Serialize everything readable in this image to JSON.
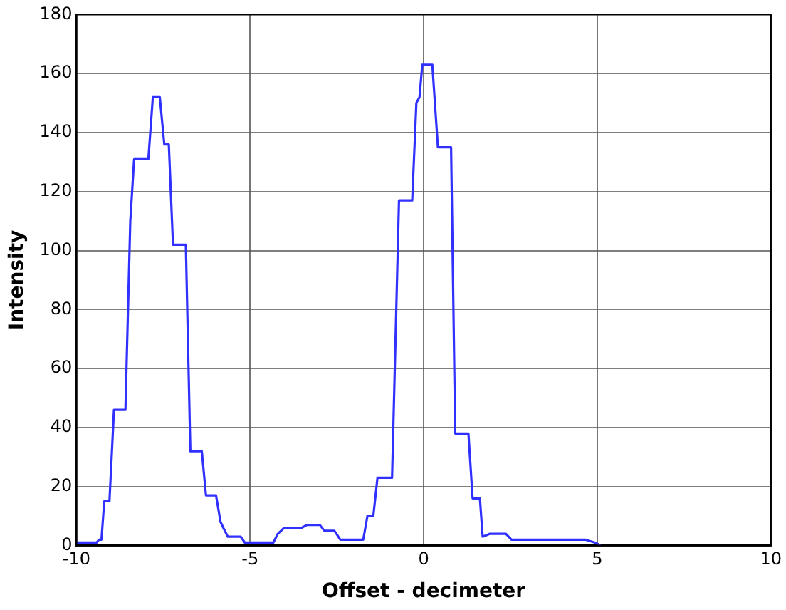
{
  "chart_data": {
    "type": "line",
    "xlabel": "Offset - decimeter",
    "ylabel": "Intensity",
    "xlim": [
      -10,
      10
    ],
    "ylim": [
      0,
      180
    ],
    "xticks": [
      -10,
      -5,
      0,
      5,
      10
    ],
    "yticks": [
      0,
      20,
      40,
      60,
      80,
      100,
      120,
      140,
      160,
      180
    ],
    "grid": true,
    "legend": false,
    "marker": "none",
    "line_style": "solid",
    "series": [
      {
        "color": "#3030ff",
        "x": [
          -10,
          -9.42,
          -9.35,
          -9.28,
          -9.2,
          -9.05,
          -8.92,
          -8.59,
          -8.45,
          -8.34,
          -7.93,
          -7.8,
          -7.6,
          -7.47,
          -7.34,
          -7.22,
          -6.85,
          -6.72,
          -6.39,
          -6.27,
          -5.98,
          -5.85,
          -5.77,
          -5.64,
          -5.27,
          -5.15,
          -4.33,
          -4.2,
          -4.02,
          -3.52,
          -3.36,
          -2.99,
          -2.86,
          -2.57,
          -2.4,
          -1.74,
          -1.62,
          -1.45,
          -1.33,
          -0.91,
          -0.71,
          -0.33,
          -0.21,
          -0.12,
          -0.04,
          0.25,
          0.41,
          0.79,
          0.91,
          1.29,
          1.41,
          1.62,
          1.7,
          1.91,
          2.37,
          2.53,
          4.65,
          4.94,
          5.1
        ],
        "values": [
          1,
          1,
          2,
          2,
          15,
          15,
          46,
          46,
          110,
          131,
          131,
          152,
          152,
          136,
          136,
          102,
          102,
          32,
          32,
          17,
          17,
          8,
          6,
          3,
          3,
          1,
          1,
          4,
          6,
          6,
          7,
          7,
          5,
          5,
          2,
          2,
          10,
          10,
          23,
          23,
          117,
          117,
          150,
          152,
          163,
          163,
          135,
          135,
          38,
          38,
          16,
          16,
          3,
          4,
          4,
          2,
          2,
          1,
          0
        ]
      }
    ]
  }
}
